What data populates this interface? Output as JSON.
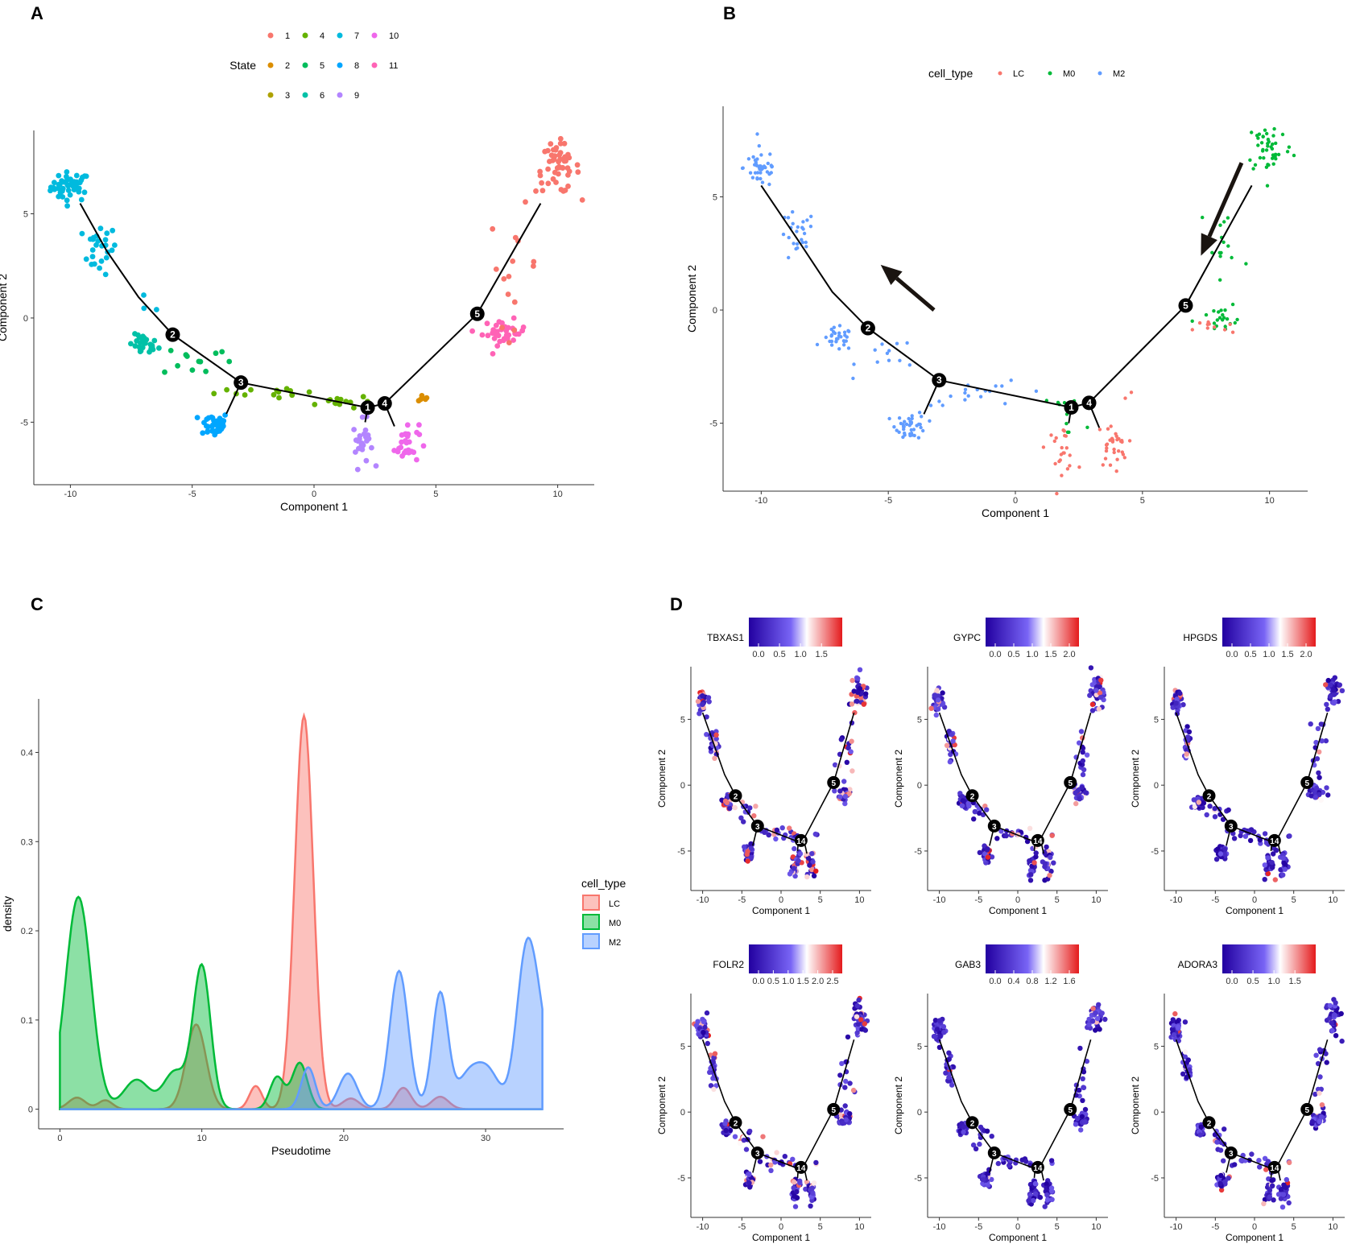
{
  "figure": {
    "panels": [
      "A",
      "B",
      "C",
      "D"
    ]
  },
  "chart_data": [
    {
      "id": "A",
      "type": "scatter",
      "title": "",
      "xlabel": "Component 1",
      "ylabel": "Component 2",
      "xlim": [
        -11.5,
        11.5
      ],
      "ylim": [
        -8,
        9
      ],
      "xticks": [
        -10,
        -5,
        0,
        5,
        10
      ],
      "yticks": [
        -5,
        0,
        5
      ],
      "legend": {
        "title": "State",
        "placement": "top",
        "entries": [
          {
            "label": "1",
            "color": "#F8766D"
          },
          {
            "label": "2",
            "color": "#DB8E00"
          },
          {
            "label": "3",
            "color": "#AEA200"
          },
          {
            "label": "4",
            "color": "#64B200"
          },
          {
            "label": "5",
            "color": "#00BD5C"
          },
          {
            "label": "6",
            "color": "#00C1A7"
          },
          {
            "label": "7",
            "color": "#00BADE"
          },
          {
            "label": "8",
            "color": "#00A6FF"
          },
          {
            "label": "9",
            "color": "#B385FF"
          },
          {
            "label": "10",
            "color": "#EF67EB"
          },
          {
            "label": "11",
            "color": "#FF63B6"
          }
        ]
      },
      "trajectory": [
        [
          [
            -9.6,
            5.5
          ],
          [
            -8.5,
            3.2
          ],
          [
            -7.2,
            1.0
          ],
          [
            -5.8,
            -0.8
          ],
          [
            -3,
            -3.1
          ],
          [
            2.2,
            -4.3
          ],
          [
            2.9,
            -4.1
          ],
          [
            6.7,
            0.2
          ],
          [
            9.3,
            5.5
          ]
        ],
        [
          [
            -3,
            -3.1
          ],
          [
            -3.6,
            -4.6
          ]
        ],
        [
          [
            2.2,
            -4.3
          ],
          [
            2.1,
            -5.0
          ]
        ],
        [
          [
            2.9,
            -4.1
          ],
          [
            3.3,
            -5.2
          ]
        ]
      ],
      "nodes": [
        {
          "label": "1",
          "x": 2.2,
          "y": -4.3
        },
        {
          "label": "2",
          "x": -5.8,
          "y": -0.8
        },
        {
          "label": "3",
          "x": -3.0,
          "y": -3.1
        },
        {
          "label": "4",
          "x": 2.9,
          "y": -4.1
        },
        {
          "label": "5",
          "x": 6.7,
          "y": 0.2
        }
      ],
      "clusters": [
        {
          "state": "7",
          "cx": -10.0,
          "cy": 6.3,
          "sx": 0.4,
          "sy": 0.35,
          "n": 45
        },
        {
          "state": "7",
          "cx": -8.8,
          "cy": 3.3,
          "sx": 0.35,
          "sy": 0.6,
          "n": 25
        },
        {
          "state": "7",
          "cx": -6.8,
          "cy": 0.6,
          "sx": 0.3,
          "sy": 0.2,
          "n": 3
        },
        {
          "state": "6",
          "cx": -7.0,
          "cy": -1.3,
          "sx": 0.3,
          "sy": 0.25,
          "n": 30
        },
        {
          "state": "5",
          "cx": -4.8,
          "cy": -2.0,
          "sx": 0.7,
          "sy": 0.4,
          "n": 12
        },
        {
          "state": "8",
          "cx": -4.1,
          "cy": -5.1,
          "sx": 0.3,
          "sy": 0.3,
          "n": 40
        },
        {
          "state": "4",
          "cx": -1.5,
          "cy": -3.5,
          "sx": 1.2,
          "sy": 0.15,
          "n": 12
        },
        {
          "state": "4",
          "cx": 1.0,
          "cy": -4.0,
          "sx": 0.7,
          "sy": 0.15,
          "n": 15
        },
        {
          "state": "2",
          "cx": 4.4,
          "cy": -3.8,
          "sx": 0.1,
          "sy": 0.08,
          "n": 5
        },
        {
          "state": "9",
          "cx": 2.0,
          "cy": -6.0,
          "sx": 0.2,
          "sy": 0.55,
          "n": 25
        },
        {
          "state": "10",
          "cx": 3.8,
          "cy": -6.0,
          "sx": 0.25,
          "sy": 0.5,
          "n": 30
        },
        {
          "state": "11",
          "cx": 7.8,
          "cy": -0.7,
          "sx": 0.45,
          "sy": 0.3,
          "n": 35
        },
        {
          "state": "1",
          "cx": 8.2,
          "cy": 2.5,
          "sx": 0.5,
          "sy": 1.4,
          "n": 15
        },
        {
          "state": "1",
          "cx": 10.0,
          "cy": 7.2,
          "sx": 0.45,
          "sy": 0.6,
          "n": 50
        }
      ]
    },
    {
      "id": "B",
      "type": "scatter",
      "title": "",
      "xlabel": "Component 1",
      "ylabel": "Component 2",
      "xlim": [
        -11.5,
        11.5
      ],
      "ylim": [
        -8,
        9
      ],
      "xticks": [
        -10,
        -5,
        0,
        5,
        10
      ],
      "yticks": [
        -5,
        0,
        5
      ],
      "legend": {
        "title": "cell_type",
        "placement": "top",
        "entries": [
          {
            "label": "LC",
            "color": "#F8766D"
          },
          {
            "label": "M0",
            "color": "#00BA38"
          },
          {
            "label": "M2",
            "color": "#619CFF"
          }
        ]
      },
      "trajectory": [
        [
          [
            -10,
            5.5
          ],
          [
            -8.5,
            3.0
          ],
          [
            -7.2,
            0.8
          ],
          [
            -5.8,
            -0.8
          ],
          [
            -3,
            -3.1
          ],
          [
            2.2,
            -4.3
          ],
          [
            2.9,
            -4.1
          ],
          [
            6.7,
            0.2
          ],
          [
            9.3,
            5.5
          ]
        ],
        [
          [
            -3,
            -3.1
          ],
          [
            -3.6,
            -4.6
          ]
        ],
        [
          [
            2.2,
            -4.3
          ],
          [
            2.1,
            -5.0
          ]
        ],
        [
          [
            2.9,
            -4.1
          ],
          [
            3.3,
            -5.2
          ]
        ]
      ],
      "nodes": [
        {
          "label": "1",
          "x": 2.2,
          "y": -4.3
        },
        {
          "label": "2",
          "x": -5.8,
          "y": -0.8
        },
        {
          "label": "3",
          "x": -3.0,
          "y": -3.1
        },
        {
          "label": "4",
          "x": 2.9,
          "y": -4.1
        },
        {
          "label": "5",
          "x": 6.7,
          "y": 0.2
        }
      ],
      "arrows": [
        {
          "from": [
            -3.2,
            0.0
          ],
          "to": [
            -5.3,
            2.0
          ]
        },
        {
          "from": [
            8.9,
            6.5
          ],
          "to": [
            7.3,
            2.4
          ]
        }
      ],
      "clusters": [
        {
          "type": "M2",
          "cx": -10.0,
          "cy": 6.3,
          "sx": 0.35,
          "sy": 0.45,
          "n": 40
        },
        {
          "type": "M2",
          "cx": -8.6,
          "cy": 3.2,
          "sx": 0.35,
          "sy": 0.6,
          "n": 25
        },
        {
          "type": "M2",
          "cx": -7.0,
          "cy": -1.3,
          "sx": 0.3,
          "sy": 0.25,
          "n": 30
        },
        {
          "type": "M2",
          "cx": -4.8,
          "cy": -2.0,
          "sx": 0.7,
          "sy": 0.4,
          "n": 12
        },
        {
          "type": "M2",
          "cx": -4.1,
          "cy": -5.1,
          "sx": 0.3,
          "sy": 0.3,
          "n": 40
        },
        {
          "type": "M2",
          "cx": -1.0,
          "cy": -3.7,
          "sx": 1.4,
          "sy": 0.25,
          "n": 18
        },
        {
          "type": "M0",
          "cx": 1.6,
          "cy": -4.1,
          "sx": 0.5,
          "sy": 0.15,
          "n": 6
        },
        {
          "type": "LC",
          "cx": 1.8,
          "cy": -6.1,
          "sx": 0.3,
          "sy": 0.5,
          "n": 22
        },
        {
          "type": "M0",
          "cx": 2.2,
          "cy": -5.5,
          "sx": 0.2,
          "sy": 0.4,
          "n": 5
        },
        {
          "type": "LC",
          "cx": 3.8,
          "cy": -6.0,
          "sx": 0.3,
          "sy": 0.5,
          "n": 30
        },
        {
          "type": "LC",
          "cx": 4.4,
          "cy": -3.8,
          "sx": 0.08,
          "sy": 0.08,
          "n": 2
        },
        {
          "type": "M0",
          "cx": 8.0,
          "cy": -0.5,
          "sx": 0.5,
          "sy": 0.3,
          "n": 20
        },
        {
          "type": "LC",
          "cx": 7.8,
          "cy": -0.8,
          "sx": 0.4,
          "sy": 0.2,
          "n": 10
        },
        {
          "type": "M0",
          "cx": 8.2,
          "cy": 2.6,
          "sx": 0.5,
          "sy": 1.3,
          "n": 15
        },
        {
          "type": "M0",
          "cx": 10.0,
          "cy": 7.2,
          "sx": 0.45,
          "sy": 0.6,
          "n": 45
        }
      ]
    },
    {
      "id": "C",
      "type": "area",
      "title": "",
      "xlabel": "Pseudotime",
      "ylabel": "density",
      "xlim": [
        -1.5,
        35.5
      ],
      "ylim": [
        -0.022,
        0.46
      ],
      "xticks": [
        0,
        10,
        20,
        30
      ],
      "yticks": [
        0.0,
        0.1,
        0.2,
        0.3,
        0.4
      ],
      "x_range": [
        0,
        34
      ],
      "legend": {
        "title": "cell_type",
        "placement": "right"
      },
      "series": [
        {
          "name": "LC",
          "color": "#F8766D",
          "baseline": 0.0,
          "peaks": [
            {
              "mu": 1.2,
              "amp": 0.013,
              "sd": 0.6
            },
            {
              "mu": 3.2,
              "amp": 0.01,
              "sd": 0.5
            },
            {
              "mu": 9.6,
              "amp": 0.095,
              "sd": 0.7
            },
            {
              "mu": 13.8,
              "amp": 0.026,
              "sd": 0.45
            },
            {
              "mu": 17.2,
              "amp": 0.441,
              "sd": 0.65
            },
            {
              "mu": 20.5,
              "amp": 0.012,
              "sd": 0.6
            },
            {
              "mu": 24.2,
              "amp": 0.024,
              "sd": 0.55
            },
            {
              "mu": 26.8,
              "amp": 0.014,
              "sd": 0.6
            }
          ]
        },
        {
          "name": "M0",
          "color": "#00BA38",
          "baseline": 0.0,
          "start": 0.086,
          "peaks": [
            {
              "mu": 1.3,
              "amp": 0.238,
              "sd": 0.9
            },
            {
              "mu": 5.4,
              "amp": 0.033,
              "sd": 0.9
            },
            {
              "mu": 8.1,
              "amp": 0.042,
              "sd": 0.8
            },
            {
              "mu": 10.0,
              "amp": 0.16,
              "sd": 0.62
            },
            {
              "mu": 15.3,
              "amp": 0.036,
              "sd": 0.5
            },
            {
              "mu": 16.9,
              "amp": 0.052,
              "sd": 0.55
            }
          ]
        },
        {
          "name": "M2",
          "color": "#619CFF",
          "baseline": 0.0,
          "peaks": [
            {
              "mu": 17.5,
              "amp": 0.047,
              "sd": 0.5
            },
            {
              "mu": 20.3,
              "amp": 0.04,
              "sd": 0.65
            },
            {
              "mu": 23.9,
              "amp": 0.155,
              "sd": 0.65
            },
            {
              "mu": 26.8,
              "amp": 0.13,
              "sd": 0.55
            },
            {
              "mu": 28.8,
              "amp": 0.037,
              "sd": 0.8
            },
            {
              "mu": 30.2,
              "amp": 0.04,
              "sd": 0.8
            },
            {
              "mu": 32.9,
              "amp": 0.179,
              "sd": 0.7
            },
            {
              "mu": 34.0,
              "amp": 0.06,
              "sd": 0.6
            }
          ]
        }
      ]
    },
    {
      "id": "D",
      "type": "scatter",
      "title": "",
      "xlabel": "Component 1",
      "ylabel": "Component 2",
      "xlim": [
        -11.5,
        11.5
      ],
      "ylim": [
        -8,
        9
      ],
      "xticks": [
        -10,
        -5,
        0,
        5,
        10
      ],
      "yticks": [
        -5,
        0,
        5
      ],
      "node_labels": [
        "2",
        "3",
        "14",
        "5"
      ],
      "genes": [
        {
          "name": "TBXAS1",
          "ticks": [
            "0.0",
            "0.5",
            "1.0",
            "1.5"
          ],
          "high_fraction": 0.3
        },
        {
          "name": "GYPC",
          "ticks": [
            "0.0",
            "0.5",
            "1.0",
            "1.5",
            "2.0"
          ],
          "high_fraction": 0.15
        },
        {
          "name": "HPGDS",
          "ticks": [
            "0.0",
            "0.5",
            "1.0",
            "1.5",
            "2.0"
          ],
          "high_fraction": 0.1
        },
        {
          "name": "FOLR2",
          "ticks": [
            "0.0",
            "0.5",
            "1.0",
            "1.5",
            "2.0",
            "2.5"
          ],
          "high_fraction": 0.2
        },
        {
          "name": "GAB3",
          "ticks": [
            "0.0",
            "0.4",
            "0.8",
            "1.2",
            "1.6"
          ],
          "high_fraction": 0.04
        },
        {
          "name": "ADORA3",
          "ticks": [
            "0.0",
            "0.5",
            "1.0",
            "1.5"
          ],
          "high_fraction": 0.08
        }
      ]
    }
  ]
}
